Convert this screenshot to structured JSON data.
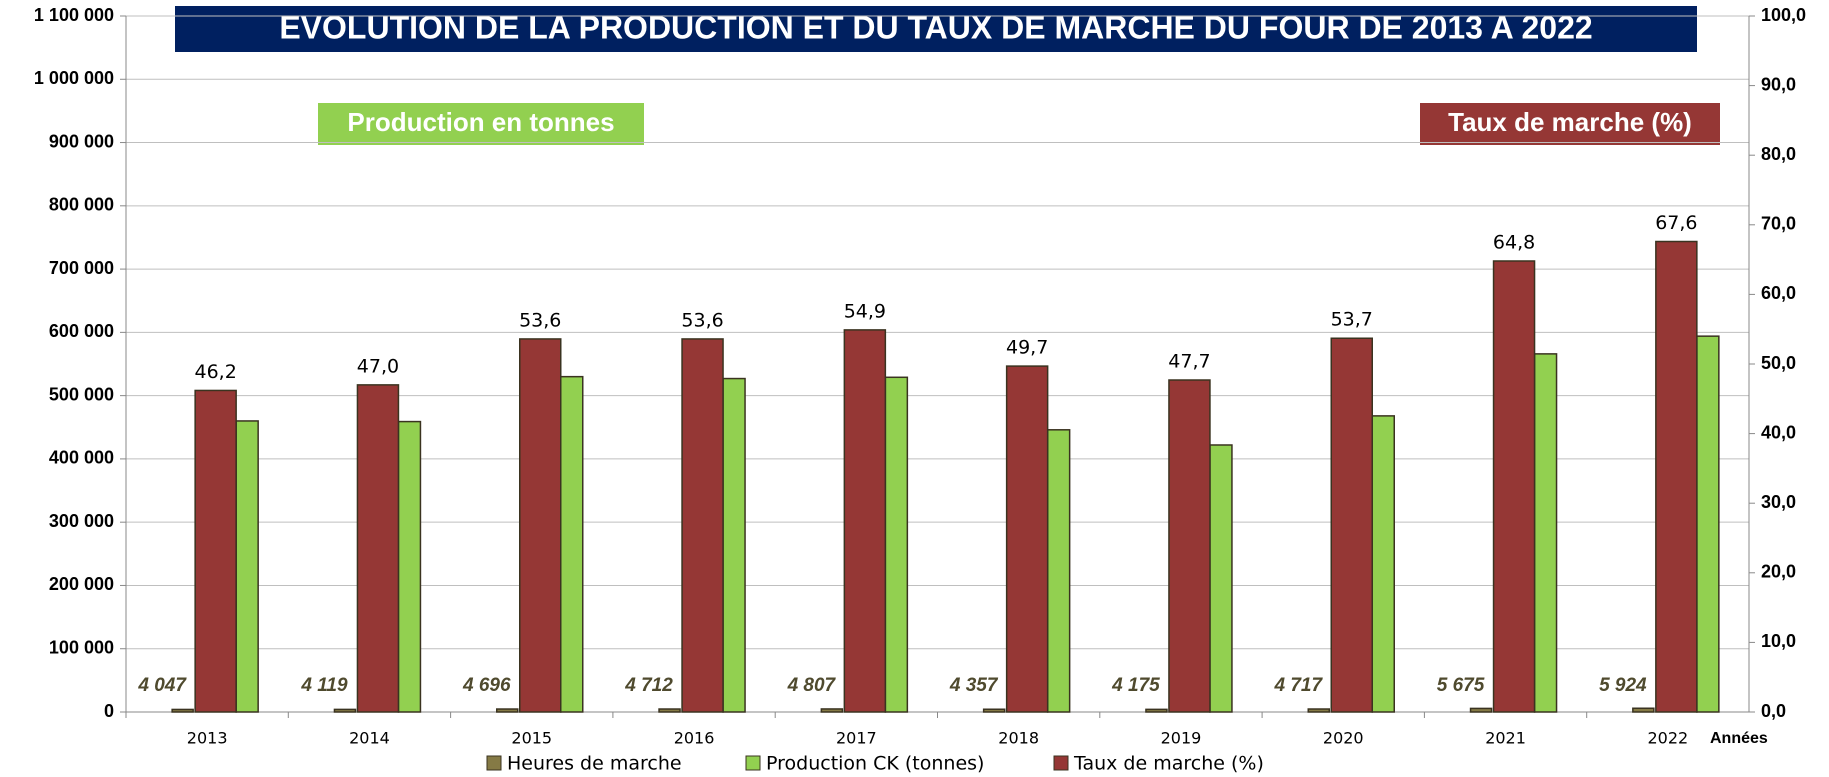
{
  "chart_data": {
    "type": "bar",
    "title": "EVOLUTION DE LA PRODUCTION ET DU TAUX DE MARCHE DU FOUR DE 2013 A 2022",
    "annotations": [
      "Production en tonnes",
      "Taux de marche (%)"
    ],
    "x_label": "Années",
    "categories": [
      "2013",
      "2014",
      "2015",
      "2016",
      "2017",
      "2018",
      "2019",
      "2020",
      "2021",
      "2022"
    ],
    "series": [
      {
        "name": "Heures de marche",
        "color": "#857a45",
        "values": [
          4047,
          4119,
          4696,
          4712,
          4807,
          4357,
          4175,
          4717,
          5675,
          5924
        ],
        "value_labels": [
          "4 047",
          "4 119",
          "4 696",
          "4 712",
          "4 807",
          "4 357",
          "4 175",
          "4 717",
          "5 675",
          "5 924"
        ]
      },
      {
        "name": "Production CK (tonnes)",
        "color": "#92d050",
        "values": [
          460000,
          459000,
          530000,
          527000,
          529000,
          446000,
          422000,
          468000,
          566000,
          594000
        ]
      },
      {
        "name": "Taux de marche (%)",
        "color": "#953735",
        "axis": "y2",
        "values": [
          46.2,
          47.0,
          53.6,
          53.6,
          54.9,
          49.7,
          47.7,
          53.7,
          64.8,
          67.6
        ],
        "value_labels": [
          "46,2",
          "47,0",
          "53,6",
          "53,6",
          "54,9",
          "49,7",
          "47,7",
          "53,7",
          "64,8",
          "67,6"
        ]
      }
    ],
    "ylim": [
      0,
      1100000
    ],
    "yticks": [
      0,
      {
        "value": 100000,
        "label": "100 000"
      },
      {
        "value": 200000,
        "label": "200 000"
      },
      {
        "value": 300000,
        "label": "300 000"
      },
      {
        "value": 400000,
        "label": "400 000"
      },
      {
        "value": 500000,
        "label": "500 000"
      },
      {
        "value": 600000,
        "label": "600 000"
      },
      {
        "value": 700000,
        "label": "700 000"
      },
      {
        "value": 800000,
        "label": "800 000"
      },
      {
        "value": 900000,
        "label": "900 000"
      },
      {
        "value": 1000000,
        "label": "1 000 000"
      },
      {
        "value": 1100000,
        "label": "1 100 000"
      }
    ],
    "y2lim": [
      0,
      100
    ],
    "y2ticks": [
      {
        "value": 0,
        "label": "0,0"
      },
      {
        "value": 10,
        "label": "10,0"
      },
      {
        "value": 20,
        "label": "20,0"
      },
      {
        "value": 30,
        "label": "30,0"
      },
      {
        "value": 40,
        "label": "40,0"
      },
      {
        "value": 50,
        "label": "50,0"
      },
      {
        "value": 60,
        "label": "60,0"
      },
      {
        "value": 70,
        "label": "70,0"
      },
      {
        "value": 80,
        "label": "80,0"
      },
      {
        "value": 90,
        "label": "90,0"
      },
      {
        "value": {
          "value": 100
        },
        "label": "100,0"
      }
    ],
    "grid": true
  }
}
